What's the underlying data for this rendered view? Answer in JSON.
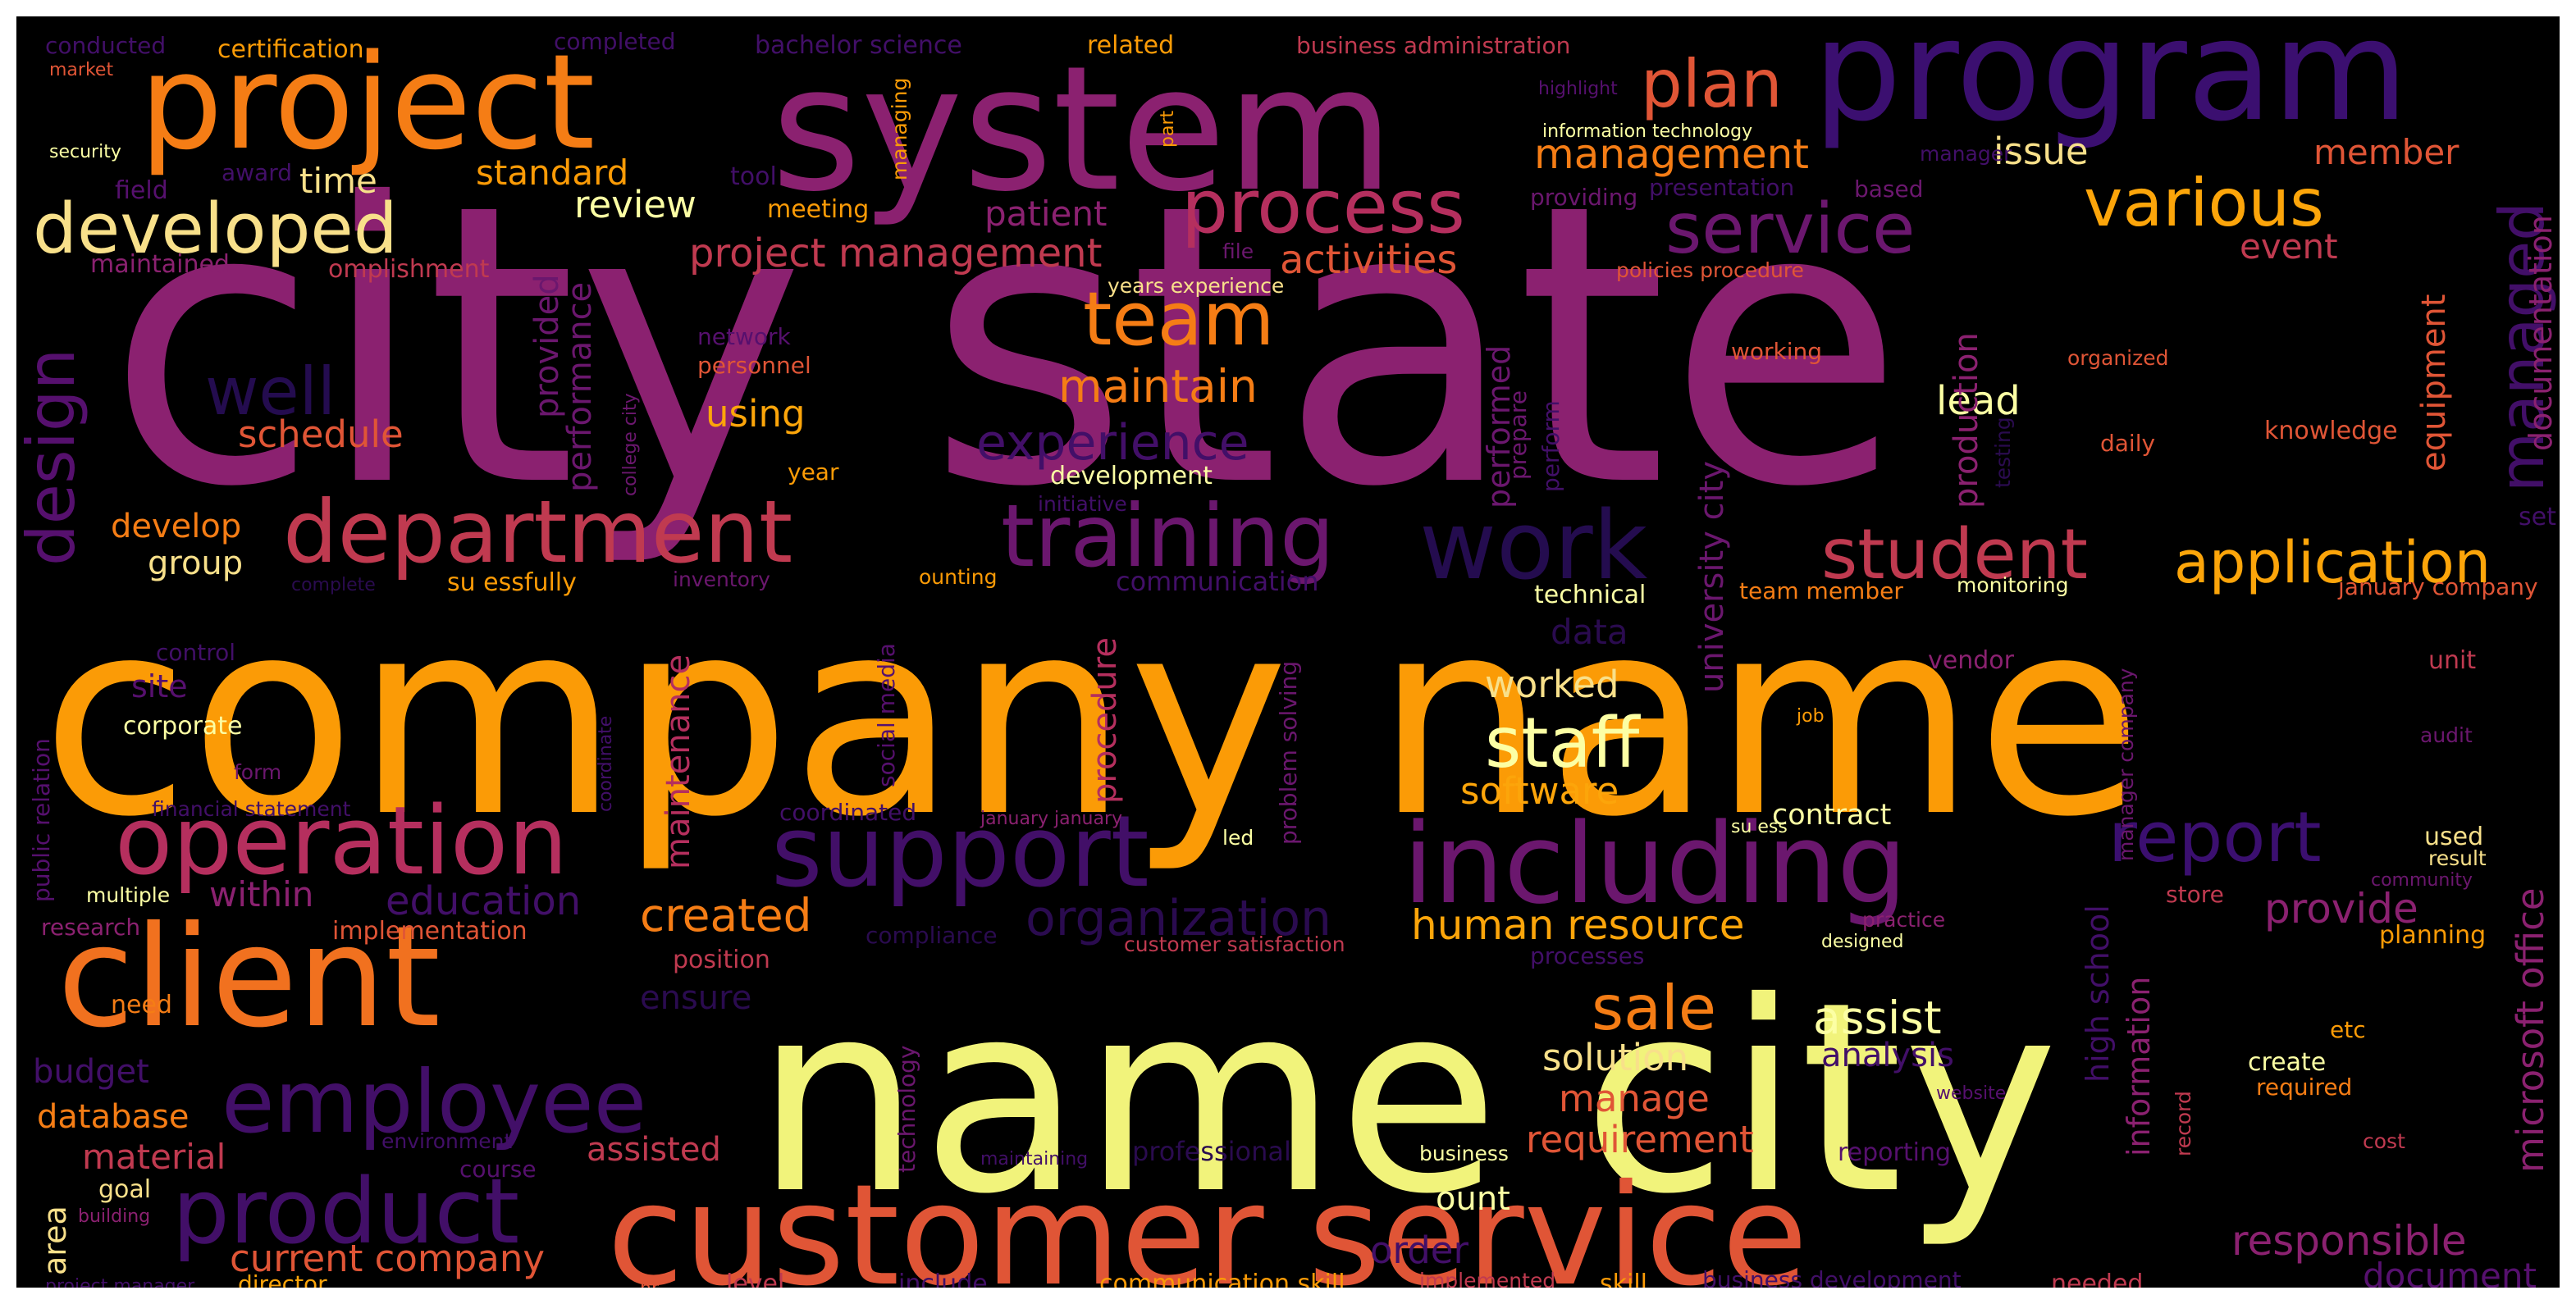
{
  "words": [
    {
      "text": "city state",
      "color": "#8b2170"
    },
    {
      "text": "company name",
      "color": "#fb9b06"
    },
    {
      "text": "name city",
      "color": "#f1f37b"
    },
    {
      "text": "system",
      "color": "#8b2170"
    },
    {
      "text": "program",
      "color": "#3b0f70"
    },
    {
      "text": "project",
      "color": "#f57d15"
    },
    {
      "text": "customer service",
      "color": "#e05536"
    },
    {
      "text": "client",
      "color": "#f1711f"
    },
    {
      "text": "including",
      "color": "#6b176e"
    },
    {
      "text": "support",
      "color": "#420f68"
    },
    {
      "text": "operation",
      "color": "#b52f5e"
    },
    {
      "text": "department",
      "color": "#c03a50"
    },
    {
      "text": "training",
      "color": "#6b176e"
    },
    {
      "text": "work",
      "color": "#240c4f"
    },
    {
      "text": "employee",
      "color": "#420f68"
    },
    {
      "text": "product",
      "color": "#420f68"
    },
    {
      "text": "developed",
      "color": "#f8e08a"
    },
    {
      "text": "process",
      "color": "#b52f5e"
    },
    {
      "text": "service",
      "color": "#6b176e"
    },
    {
      "text": "student",
      "color": "#c03a50"
    },
    {
      "text": "application",
      "color": "#fca50a"
    },
    {
      "text": "staff",
      "color": "#fcffa4"
    },
    {
      "text": "team",
      "color": "#f57d15"
    },
    {
      "text": "various",
      "color": "#fca50a"
    },
    {
      "text": "report",
      "color": "#3b0f70"
    },
    {
      "text": "plan",
      "color": "#e05536"
    },
    {
      "text": "design",
      "color": "#56106e"
    },
    {
      "text": "well",
      "color": "#240c4f"
    },
    {
      "text": "sale",
      "color": "#f57d15"
    },
    {
      "text": "managed",
      "color": "#420f68"
    },
    {
      "text": "experience",
      "color": "#420f68"
    },
    {
      "text": "organization",
      "color": "#2a0b4f"
    },
    {
      "text": "created",
      "color": "#f57d15"
    },
    {
      "text": "education",
      "color": "#420f68"
    },
    {
      "text": "management",
      "color": "#f57d15"
    },
    {
      "text": "maintain",
      "color": "#f57d15"
    },
    {
      "text": "human resource",
      "color": "#fca50a"
    },
    {
      "text": "assist",
      "color": "#fcffa4"
    },
    {
      "text": "provide",
      "color": "#8b2170"
    },
    {
      "text": "responsible",
      "color": "#8b2170"
    },
    {
      "text": "microsoft office",
      "color": "#8b2170"
    },
    {
      "text": "current company",
      "color": "#e05536"
    },
    {
      "text": "project management",
      "color": "#c03a50"
    },
    {
      "text": "activities",
      "color": "#e05536"
    },
    {
      "text": "lead",
      "color": "#fcffa4"
    },
    {
      "text": "solution",
      "color": "#f8e08a"
    },
    {
      "text": "manage",
      "color": "#e05536"
    },
    {
      "text": "requirement",
      "color": "#e05536"
    },
    {
      "text": "worked",
      "color": "#f8e08a"
    },
    {
      "text": "software",
      "color": "#fca50a"
    },
    {
      "text": "analysis",
      "color": "#420f68"
    },
    {
      "text": "review",
      "color": "#fcffa4"
    },
    {
      "text": "standard",
      "color": "#fb9b06"
    },
    {
      "text": "time",
      "color": "#f8e08a"
    },
    {
      "text": "issue",
      "color": "#f8e08a"
    },
    {
      "text": "member",
      "color": "#e05536"
    },
    {
      "text": "event",
      "color": "#c03a50"
    },
    {
      "text": "patient",
      "color": "#8b2170"
    },
    {
      "text": "using",
      "color": "#fca50a"
    },
    {
      "text": "schedule",
      "color": "#e05536"
    },
    {
      "text": "develop",
      "color": "#f57d15"
    },
    {
      "text": "group",
      "color": "#f8e08a"
    },
    {
      "text": "site",
      "color": "#56106e"
    },
    {
      "text": "within",
      "color": "#8b2170"
    },
    {
      "text": "budget",
      "color": "#420f68"
    },
    {
      "text": "database",
      "color": "#f57d15"
    },
    {
      "text": "material",
      "color": "#c03a50"
    },
    {
      "text": "assisted",
      "color": "#c03a50"
    },
    {
      "text": "ensure",
      "color": "#2a0b4f"
    },
    {
      "text": "order",
      "color": "#420f68"
    },
    {
      "text": "document",
      "color": "#56106e"
    },
    {
      "text": "procedure",
      "color": "#b52f5e"
    },
    {
      "text": "maintenance",
      "color": "#b52f5e"
    },
    {
      "text": "performance",
      "color": "#6b176e"
    },
    {
      "text": "provided",
      "color": "#6b176e"
    },
    {
      "text": "performed",
      "color": "#6b176e"
    },
    {
      "text": "production",
      "color": "#8b2170"
    },
    {
      "text": "university city",
      "color": "#6b176e"
    },
    {
      "text": "high school",
      "color": "#420f68"
    },
    {
      "text": "information",
      "color": "#8b2170"
    },
    {
      "text": "equipment",
      "color": "#e05536"
    },
    {
      "text": "documentation",
      "color": "#8b2170"
    },
    {
      "text": "data",
      "color": "#2a0b4f"
    },
    {
      "text": "contract",
      "color": "#fcffa4"
    },
    {
      "text": "ount",
      "color": "#fcffa4"
    },
    {
      "text": "need",
      "color": "#f57d15"
    },
    {
      "text": "goal",
      "color": "#f8e08a"
    },
    {
      "text": "area",
      "color": "#f8e08a"
    },
    {
      "text": "technical",
      "color": "#fcffa4"
    },
    {
      "text": "team member",
      "color": "#f57d15"
    },
    {
      "text": "knowledge",
      "color": "#e05536"
    },
    {
      "text": "daily",
      "color": "#e05536"
    },
    {
      "text": "development",
      "color": "#fcffa4"
    },
    {
      "text": "year",
      "color": "#fb9b06"
    },
    {
      "text": "personnel",
      "color": "#e05536"
    },
    {
      "text": "network",
      "color": "#56106e"
    },
    {
      "text": "meeting",
      "color": "#fb9b06"
    },
    {
      "text": "tool",
      "color": "#420f68"
    },
    {
      "text": "certification",
      "color": "#fb9b06"
    },
    {
      "text": "bachelor science",
      "color": "#420f68"
    },
    {
      "text": "related",
      "color": "#fb9b06"
    },
    {
      "text": "business administration",
      "color": "#c03a50"
    },
    {
      "text": "completed",
      "color": "#420f68"
    },
    {
      "text": "conducted",
      "color": "#420f68"
    },
    {
      "text": "market",
      "color": "#e05536"
    },
    {
      "text": "security",
      "color": "#fcffa4"
    },
    {
      "text": "award",
      "color": "#420f68"
    },
    {
      "text": "field",
      "color": "#56106e"
    },
    {
      "text": "maintained",
      "color": "#8b2170"
    },
    {
      "text": "omplishment",
      "color": "#c03a50"
    },
    {
      "text": "highlight",
      "color": "#56106e"
    },
    {
      "text": "information technology",
      "color": "#fcffa4"
    },
    {
      "text": "manager",
      "color": "#420f68"
    },
    {
      "text": "presentation",
      "color": "#420f68"
    },
    {
      "text": "based",
      "color": "#6b176e"
    },
    {
      "text": "providing",
      "color": "#6b176e"
    },
    {
      "text": "policies procedure",
      "color": "#e05536"
    },
    {
      "text": "years experience",
      "color": "#f8e08a"
    },
    {
      "text": "file",
      "color": "#6b176e"
    },
    {
      "text": "working",
      "color": "#e05536"
    },
    {
      "text": "organized",
      "color": "#e05536"
    },
    {
      "text": "initiative",
      "color": "#420f68"
    },
    {
      "text": "managing",
      "color": "#fb9b06"
    },
    {
      "text": "part",
      "color": "#fb9b06"
    },
    {
      "text": "communication",
      "color": "#420f68"
    },
    {
      "text": "su essfully",
      "color": "#fb9b06"
    },
    {
      "text": "inventory",
      "color": "#6b176e"
    },
    {
      "text": "ounting",
      "color": "#fb9b06"
    },
    {
      "text": "monitoring",
      "color": "#fcffa4"
    },
    {
      "text": "january company",
      "color": "#e05536"
    },
    {
      "text": "complete",
      "color": "#2a0b4f"
    },
    {
      "text": "control",
      "color": "#420f68"
    },
    {
      "text": "corporate",
      "color": "#fcffa4"
    },
    {
      "text": "public relation",
      "color": "#56106e"
    },
    {
      "text": "financial statement",
      "color": "#420f68"
    },
    {
      "text": "form",
      "color": "#6b176e"
    },
    {
      "text": "multiple",
      "color": "#fcffa4"
    },
    {
      "text": "research",
      "color": "#8b2170"
    },
    {
      "text": "implementation",
      "color": "#e05536"
    },
    {
      "text": "position",
      "color": "#c03a50"
    },
    {
      "text": "environment",
      "color": "#420f68"
    },
    {
      "text": "course",
      "color": "#56106e"
    },
    {
      "text": "building",
      "color": "#8b2170"
    },
    {
      "text": "project manager",
      "color": "#420f68"
    },
    {
      "text": "director",
      "color": "#fca50a"
    },
    {
      "text": "hr",
      "color": "#e05536"
    },
    {
      "text": "level",
      "color": "#c03a50"
    },
    {
      "text": "include",
      "color": "#420f68"
    },
    {
      "text": "communication skill",
      "color": "#fb9b06"
    },
    {
      "text": "implemented",
      "color": "#c03a50"
    },
    {
      "text": "skill",
      "color": "#fb9b06"
    },
    {
      "text": "business development",
      "color": "#420f68"
    },
    {
      "text": "needed",
      "color": "#c03a50"
    },
    {
      "text": "coordinated",
      "color": "#420f68"
    },
    {
      "text": "january january",
      "color": "#8b2170"
    },
    {
      "text": "led",
      "color": "#fcffa4"
    },
    {
      "text": "su ess",
      "color": "#fcffa4"
    },
    {
      "text": "compliance",
      "color": "#2a0b4f"
    },
    {
      "text": "customer satisfaction",
      "color": "#c03a50"
    },
    {
      "text": "processes",
      "color": "#420f68"
    },
    {
      "text": "designed",
      "color": "#fcffa4"
    },
    {
      "text": "practice",
      "color": "#8b2170"
    },
    {
      "text": "store",
      "color": "#c03a50"
    },
    {
      "text": "planning",
      "color": "#fb9b06"
    },
    {
      "text": "community",
      "color": "#6b176e"
    },
    {
      "text": "used",
      "color": "#f8e08a"
    },
    {
      "text": "result",
      "color": "#f8e08a"
    },
    {
      "text": "audit",
      "color": "#6b176e"
    },
    {
      "text": "unit",
      "color": "#c03a50"
    },
    {
      "text": "vendor",
      "color": "#8b2170"
    },
    {
      "text": "job",
      "color": "#fb9b06"
    },
    {
      "text": "etc",
      "color": "#fb9b06"
    },
    {
      "text": "create",
      "color": "#fcffa4"
    },
    {
      "text": "required",
      "color": "#f57d15"
    },
    {
      "text": "website",
      "color": "#56106e"
    },
    {
      "text": "record",
      "color": "#c03a50"
    },
    {
      "text": "cost",
      "color": "#c03a50"
    },
    {
      "text": "reporting",
      "color": "#56106e"
    },
    {
      "text": "business",
      "color": "#fcffa4"
    },
    {
      "text": "maintaining",
      "color": "#420f68"
    },
    {
      "text": "professional",
      "color": "#2a0b4f"
    },
    {
      "text": "technology",
      "color": "#6b176e"
    },
    {
      "text": "social media",
      "color": "#56106e"
    },
    {
      "text": "problem solving",
      "color": "#6b176e"
    },
    {
      "text": "manager company",
      "color": "#6b176e"
    },
    {
      "text": "coordinate",
      "color": "#420f68"
    },
    {
      "text": "college city",
      "color": "#6b176e"
    },
    {
      "text": "prepare",
      "color": "#6b176e"
    },
    {
      "text": "perform",
      "color": "#420f68"
    },
    {
      "text": "testing",
      "color": "#2a0b4f"
    },
    {
      "text": "set",
      "color": "#420f68"
    }
  ]
}
